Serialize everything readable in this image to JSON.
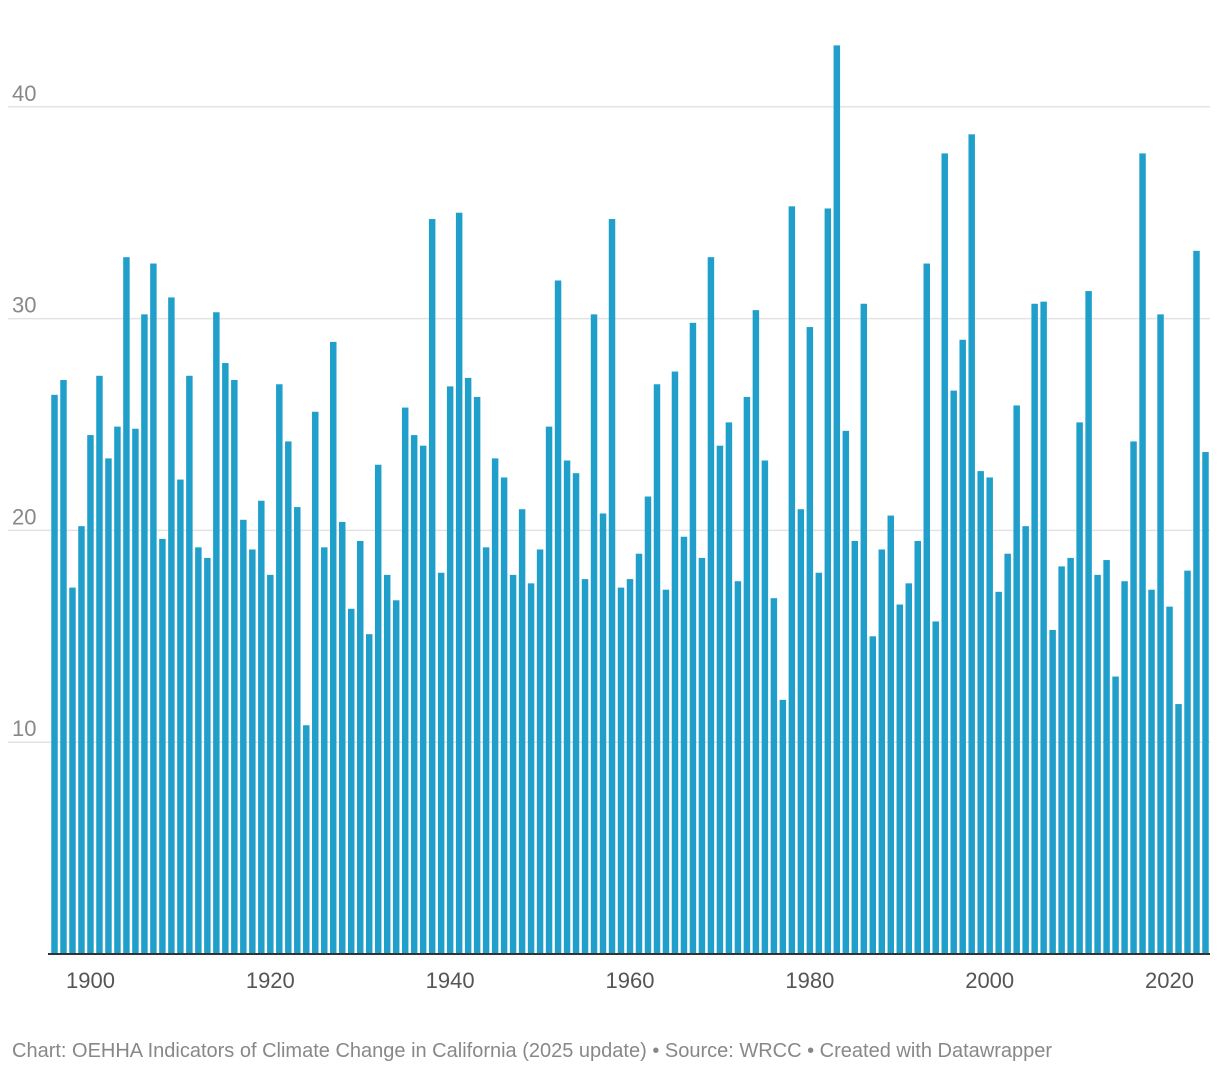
{
  "footer": {
    "credit": "Chart: OEHHA Indicators of Climate Change in California (2025 update) • Source: WRCC • Created with Datawrapper"
  },
  "colors": {
    "bar": "#1f9fca",
    "grid": "#e3e3e3",
    "baseline": "#333333"
  },
  "chart_data": {
    "type": "bar",
    "title": "",
    "xlabel": "",
    "ylabel": "",
    "ylim": [
      0,
      43
    ],
    "yticks": [
      10,
      20,
      30,
      40
    ],
    "xticks": [
      1900,
      1920,
      1940,
      1960,
      1980,
      2000,
      2020
    ],
    "grid": true,
    "legend": "none",
    "x": [
      1896,
      1897,
      1898,
      1899,
      1900,
      1901,
      1902,
      1903,
      1904,
      1905,
      1906,
      1907,
      1908,
      1909,
      1910,
      1911,
      1912,
      1913,
      1914,
      1915,
      1916,
      1917,
      1918,
      1919,
      1920,
      1921,
      1922,
      1923,
      1924,
      1925,
      1926,
      1927,
      1928,
      1929,
      1930,
      1931,
      1932,
      1933,
      1934,
      1935,
      1936,
      1937,
      1938,
      1939,
      1940,
      1941,
      1942,
      1943,
      1944,
      1945,
      1946,
      1947,
      1948,
      1949,
      1950,
      1951,
      1952,
      1953,
      1954,
      1955,
      1956,
      1957,
      1958,
      1959,
      1960,
      1961,
      1962,
      1963,
      1964,
      1965,
      1966,
      1967,
      1968,
      1969,
      1970,
      1971,
      1972,
      1973,
      1974,
      1975,
      1976,
      1977,
      1978,
      1979,
      1980,
      1981,
      1982,
      1983,
      1984,
      1985,
      1986,
      1987,
      1988,
      1989,
      1990,
      1991,
      1992,
      1993,
      1994,
      1995,
      1996,
      1997,
      1998,
      1999,
      2000,
      2001,
      2002,
      2003,
      2004,
      2005,
      2006,
      2007,
      2008,
      2009,
      2010,
      2011,
      2012,
      2013,
      2014,
      2015,
      2016,
      2017,
      2018,
      2019,
      2020,
      2021,
      2022,
      2023,
      2024
    ],
    "values": [
      26.4,
      27.1,
      17.3,
      20.2,
      24.5,
      27.3,
      23.4,
      24.9,
      32.9,
      24.8,
      30.2,
      32.6,
      19.6,
      31.0,
      22.4,
      27.3,
      19.2,
      18.7,
      30.3,
      27.9,
      27.1,
      20.5,
      19.1,
      21.4,
      17.9,
      26.9,
      24.2,
      21.1,
      10.8,
      25.6,
      19.2,
      28.9,
      20.4,
      16.3,
      19.5,
      15.1,
      23.1,
      17.9,
      16.7,
      25.8,
      24.5,
      24.0,
      34.7,
      18.0,
      26.8,
      35.0,
      27.2,
      26.3,
      19.2,
      23.4,
      22.5,
      17.9,
      21.0,
      17.5,
      19.1,
      24.9,
      31.8,
      23.3,
      22.7,
      17.7,
      30.2,
      20.8,
      34.7,
      17.3,
      17.7,
      18.9,
      21.6,
      26.9,
      17.2,
      27.5,
      19.7,
      29.8,
      18.7,
      32.9,
      24.0,
      25.1,
      17.6,
      26.3,
      30.4,
      23.3,
      16.8,
      12.0,
      35.3,
      21.0,
      29.6,
      18.0,
      35.2,
      42.9,
      24.7,
      19.5,
      30.7,
      15.0,
      19.1,
      20.7,
      16.5,
      17.5,
      19.5,
      32.6,
      15.7,
      37.8,
      26.6,
      29.0,
      38.7,
      22.8,
      22.5,
      17.1,
      18.9,
      25.9,
      20.2,
      30.7,
      30.8,
      15.3,
      18.3,
      18.7,
      25.1,
      31.3,
      17.9,
      18.6,
      13.1,
      17.6,
      24.2,
      37.8,
      17.2,
      30.2,
      16.4,
      11.8,
      18.1,
      33.2,
      23.7
    ]
  }
}
